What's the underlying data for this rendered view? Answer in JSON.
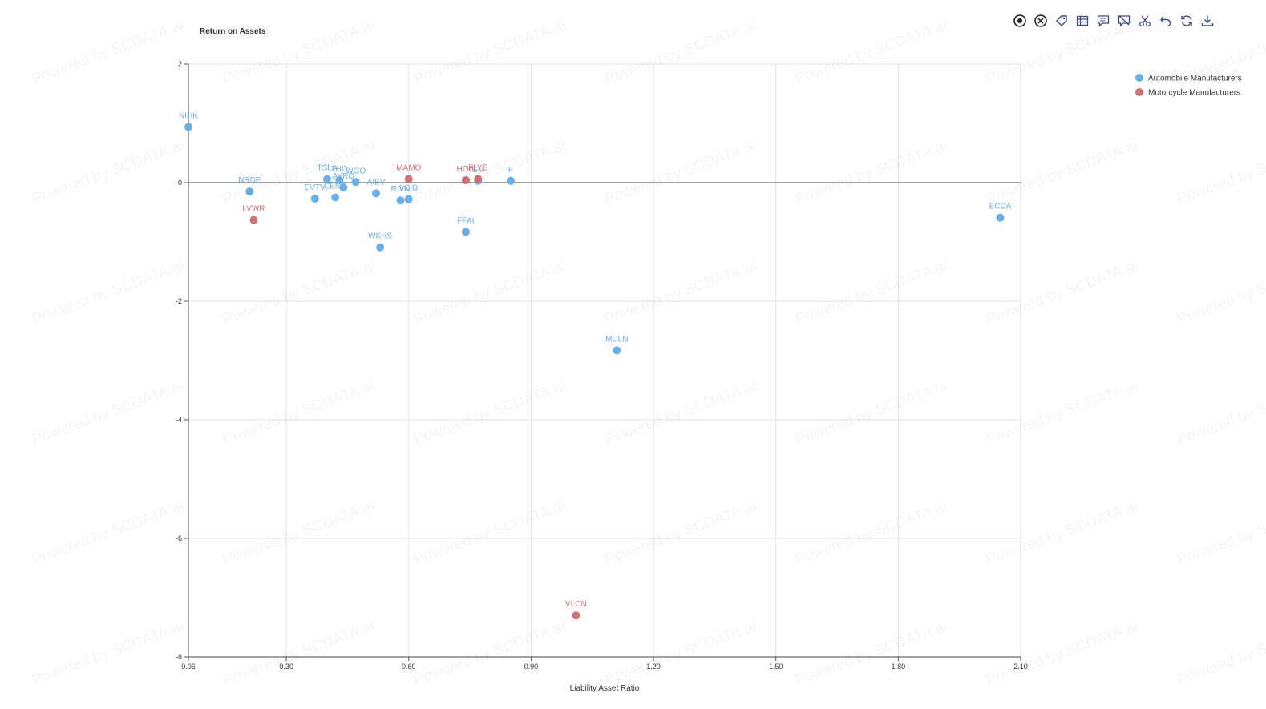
{
  "watermark_text": "Powered by SCDATA.ai",
  "toolbar": {
    "tools": [
      {
        "name": "target-icon"
      },
      {
        "name": "close-circle-icon"
      },
      {
        "name": "tag-icon"
      },
      {
        "name": "table-icon"
      },
      {
        "name": "comment-icon"
      },
      {
        "name": "comment-off-icon"
      },
      {
        "name": "scissors-icon"
      },
      {
        "name": "undo-icon"
      },
      {
        "name": "refresh-icon"
      },
      {
        "name": "download-icon"
      }
    ]
  },
  "chart_data": {
    "type": "scatter",
    "title": "Return on Assets",
    "xlabel": "Liability Asset Ratio",
    "ylabel": "",
    "xlim": [
      0.06,
      2.1
    ],
    "ylim": [
      -8,
      2
    ],
    "xticks": [
      "0.06",
      "0.30",
      "0.60",
      "0.90",
      "1.20",
      "1.50",
      "1.80",
      "2.10"
    ],
    "yticks": [
      "2",
      "0",
      "-2",
      "-4",
      "-6",
      "-8"
    ],
    "grid": true,
    "legend_position": "top-right",
    "series": [
      {
        "name": "Automobile Manufacturers",
        "color": "#6aaee8",
        "points": [
          {
            "label": "NIHK",
            "x": 0.06,
            "y": 0.94
          },
          {
            "label": "NRDE",
            "x": 0.21,
            "y": -0.15
          },
          {
            "label": "EVTV",
            "x": 0.37,
            "y": -0.27
          },
          {
            "label": "TSLA",
            "x": 0.4,
            "y": 0.06
          },
          {
            "label": "THO",
            "x": 0.43,
            "y": 0.04
          },
          {
            "label": "CENN",
            "x": 0.42,
            "y": -0.25
          },
          {
            "label": "AYRO",
            "x": 0.44,
            "y": -0.08
          },
          {
            "label": "WGO",
            "x": 0.47,
            "y": 0.01
          },
          {
            "label": "AIEV",
            "x": 0.52,
            "y": -0.18
          },
          {
            "label": "WKHS",
            "x": 0.53,
            "y": -1.09
          },
          {
            "label": "RIVN",
            "x": 0.58,
            "y": -0.3
          },
          {
            "label": "LCID",
            "x": 0.6,
            "y": -0.28
          },
          {
            "label": "FFAI",
            "x": 0.74,
            "y": -0.83
          },
          {
            "label": "GM",
            "x": 0.77,
            "y": 0.03
          },
          {
            "label": "F",
            "x": 0.85,
            "y": 0.03
          },
          {
            "label": "MULN",
            "x": 1.11,
            "y": -2.83
          },
          {
            "label": "ECDA",
            "x": 2.05,
            "y": -0.59
          }
        ]
      },
      {
        "name": "Motorcycle Manufacturers",
        "color": "#d07272",
        "points": [
          {
            "label": "LVWR",
            "x": 0.22,
            "y": -0.63
          },
          {
            "label": "MAMO",
            "x": 0.6,
            "y": 0.06
          },
          {
            "label": "HOG",
            "x": 0.74,
            "y": 0.04
          },
          {
            "label": "FLYE",
            "x": 0.77,
            "y": 0.06
          },
          {
            "label": "VLCN",
            "x": 1.01,
            "y": -7.3
          }
        ]
      }
    ]
  }
}
